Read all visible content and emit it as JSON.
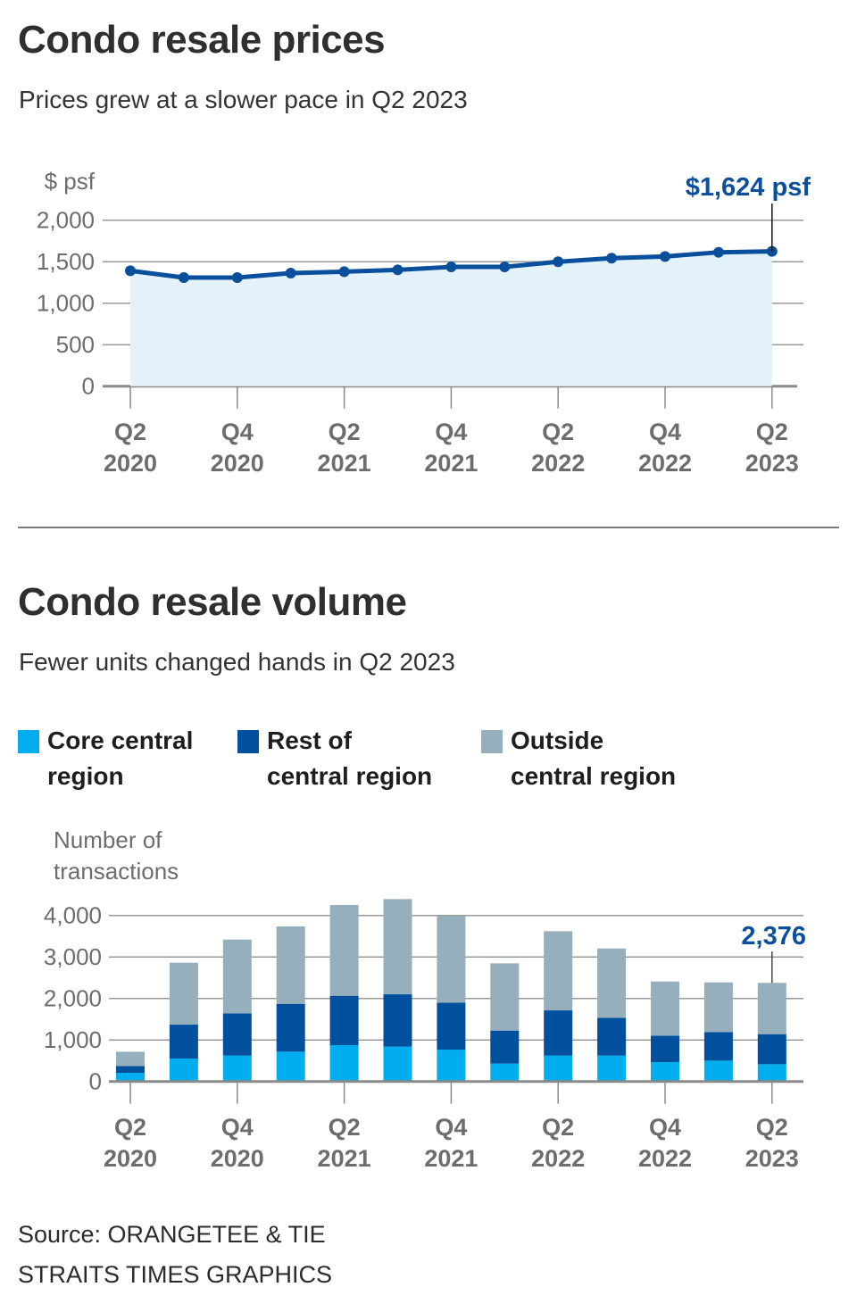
{
  "colors": {
    "accent": "#0a4f9c",
    "area_fill": "#e3f2fb",
    "core_central": "#00aeef",
    "rest_of_central": "#00509d",
    "outside_central": "#96afbd",
    "grid": "#9a9a9a",
    "axis": "#8a8a8a"
  },
  "price_section": {
    "title": "Condo resale prices",
    "subtitle": "Prices grew at a slower pace in Q2 2023"
  },
  "volume_section": {
    "title": "Condo resale volume",
    "subtitle": "Fewer units changed hands in Q2 2023",
    "legend": [
      {
        "key": "core_central",
        "line1": "Core central",
        "line2": "region"
      },
      {
        "key": "rest_of_central",
        "line1": "Rest of",
        "line2": "central region"
      },
      {
        "key": "outside_central",
        "line1": "Outside",
        "line2": "central region"
      }
    ]
  },
  "footer": {
    "source": "Source: ORANGETEE & TIE",
    "credit": "STRAITS TIMES GRAPHICS"
  },
  "chart_data": [
    {
      "type": "area",
      "title": "Condo resale prices",
      "subtitle": "Prices grew at a slower pace in Q2 2023",
      "ylabel": "$ psf",
      "xlabel": "",
      "ylim": [
        0,
        2000
      ],
      "yticks": [
        0,
        500,
        1000,
        1500,
        2000
      ],
      "ytick_labels": [
        "0",
        "500",
        "1,000",
        "1,500",
        "2,000"
      ],
      "grid": true,
      "x": [
        "Q2 2020",
        "Q3 2020",
        "Q4 2020",
        "Q1 2021",
        "Q2 2021",
        "Q3 2021",
        "Q4 2021",
        "Q1 2022",
        "Q2 2022",
        "Q3 2022",
        "Q4 2022",
        "Q1 2023",
        "Q2 2023"
      ],
      "xtick_labels": [
        {
          "index": 0,
          "line1": "Q2",
          "line2": "2020"
        },
        {
          "index": 2,
          "line1": "Q4",
          "line2": "2020"
        },
        {
          "index": 4,
          "line1": "Q2",
          "line2": "2021"
        },
        {
          "index": 6,
          "line1": "Q4",
          "line2": "2021"
        },
        {
          "index": 8,
          "line1": "Q2",
          "line2": "2022"
        },
        {
          "index": 10,
          "line1": "Q4",
          "line2": "2022"
        },
        {
          "index": 12,
          "line1": "Q2",
          "line2": "2023"
        }
      ],
      "series": [
        {
          "name": "Resale price ($ psf)",
          "values": [
            1391,
            1309,
            1309,
            1362,
            1380,
            1402,
            1437,
            1437,
            1499,
            1542,
            1563,
            1613,
            1624
          ]
        }
      ],
      "annotations": [
        {
          "index": 12,
          "text": "$1,624 psf"
        }
      ]
    },
    {
      "type": "bar",
      "stacked": true,
      "title": "Condo resale volume",
      "subtitle": "Fewer units changed hands in Q2 2023",
      "ylabel_lines": [
        "Number of",
        "transactions"
      ],
      "xlabel": "",
      "ylim": [
        0,
        4000
      ],
      "yticks": [
        0,
        1000,
        2000,
        3000,
        4000
      ],
      "ytick_labels": [
        "0",
        "1,000",
        "2,000",
        "3,000",
        "4,000"
      ],
      "grid": true,
      "legend_position": "top",
      "categories": [
        "Q2 2020",
        "Q3 2020",
        "Q4 2020",
        "Q1 2021",
        "Q2 2021",
        "Q3 2021",
        "Q4 2021",
        "Q1 2022",
        "Q2 2022",
        "Q3 2022",
        "Q4 2022",
        "Q1 2023",
        "Q2 2023"
      ],
      "xtick_labels": [
        {
          "index": 0,
          "line1": "Q2",
          "line2": "2020"
        },
        {
          "index": 2,
          "line1": "Q4",
          "line2": "2020"
        },
        {
          "index": 4,
          "line1": "Q2",
          "line2": "2021"
        },
        {
          "index": 6,
          "line1": "Q4",
          "line2": "2021"
        },
        {
          "index": 8,
          "line1": "Q2",
          "line2": "2022"
        },
        {
          "index": 10,
          "line1": "Q4",
          "line2": "2022"
        },
        {
          "index": 12,
          "line1": "Q2",
          "line2": "2023"
        }
      ],
      "series": [
        {
          "name": "Core central region",
          "key": "core_central",
          "values": [
            208,
            552,
            624,
            717,
            875,
            839,
            767,
            430,
            624,
            624,
            466,
            502,
            416
          ]
        },
        {
          "name": "Rest of central region",
          "key": "rest_of_central",
          "values": [
            165,
            817,
            1018,
            1154,
            1190,
            1261,
            1133,
            796,
            1089,
            910,
            638,
            688,
            724
          ]
        },
        {
          "name": "Outside central region",
          "key": "outside_central",
          "values": [
            344,
            1491,
            1777,
            1864,
            2186,
            2294,
            2090,
            1620,
            1907,
            1670,
            1305,
            1197,
            1236
          ]
        }
      ],
      "totals": [
        717,
        2860,
        3419,
        3735,
        4251,
        4394,
        3990,
        2846,
        3620,
        3204,
        2409,
        2387,
        2376
      ],
      "annotations": [
        {
          "index": 12,
          "text": "2,376"
        }
      ]
    }
  ]
}
